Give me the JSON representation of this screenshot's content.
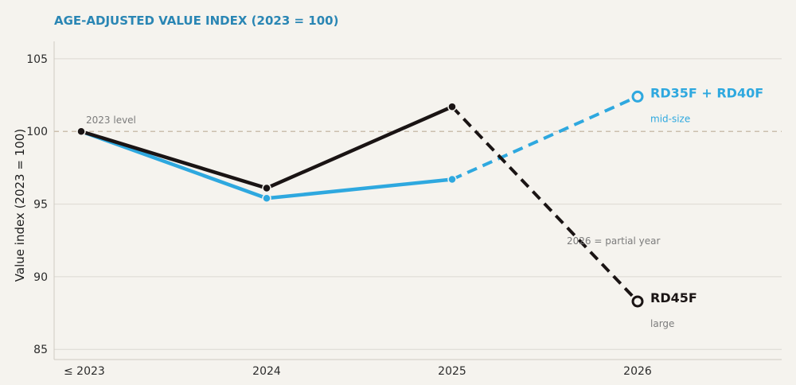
{
  "chart_data": {
    "type": "line",
    "title": "AGE-ADJUSTED VALUE INDEX  (2023 = 100)",
    "xlabel": "",
    "ylabel": "Value index  (2023 = 100)",
    "categories": [
      "≤ 2023",
      "2024",
      "2025",
      "2026"
    ],
    "yticks": [
      85,
      90,
      95,
      100,
      105
    ],
    "ylim": [
      84.3,
      106.2
    ],
    "grid": true,
    "reference_line": {
      "value": 100,
      "label": "2023 level"
    },
    "annotations": [
      {
        "text": "2026 = partial year"
      }
    ],
    "series": [
      {
        "name": "RD35F + RD40F",
        "sublabel": "mid-size",
        "color": "#2ea8df",
        "values": [
          100,
          95.4,
          96.7,
          102.4
        ],
        "dashed_from_index": 2
      },
      {
        "name": "RD45F",
        "sublabel": "large",
        "color": "#1a1414",
        "values": [
          100,
          96.1,
          101.7,
          88.3
        ],
        "dashed_from_index": 2
      }
    ]
  }
}
